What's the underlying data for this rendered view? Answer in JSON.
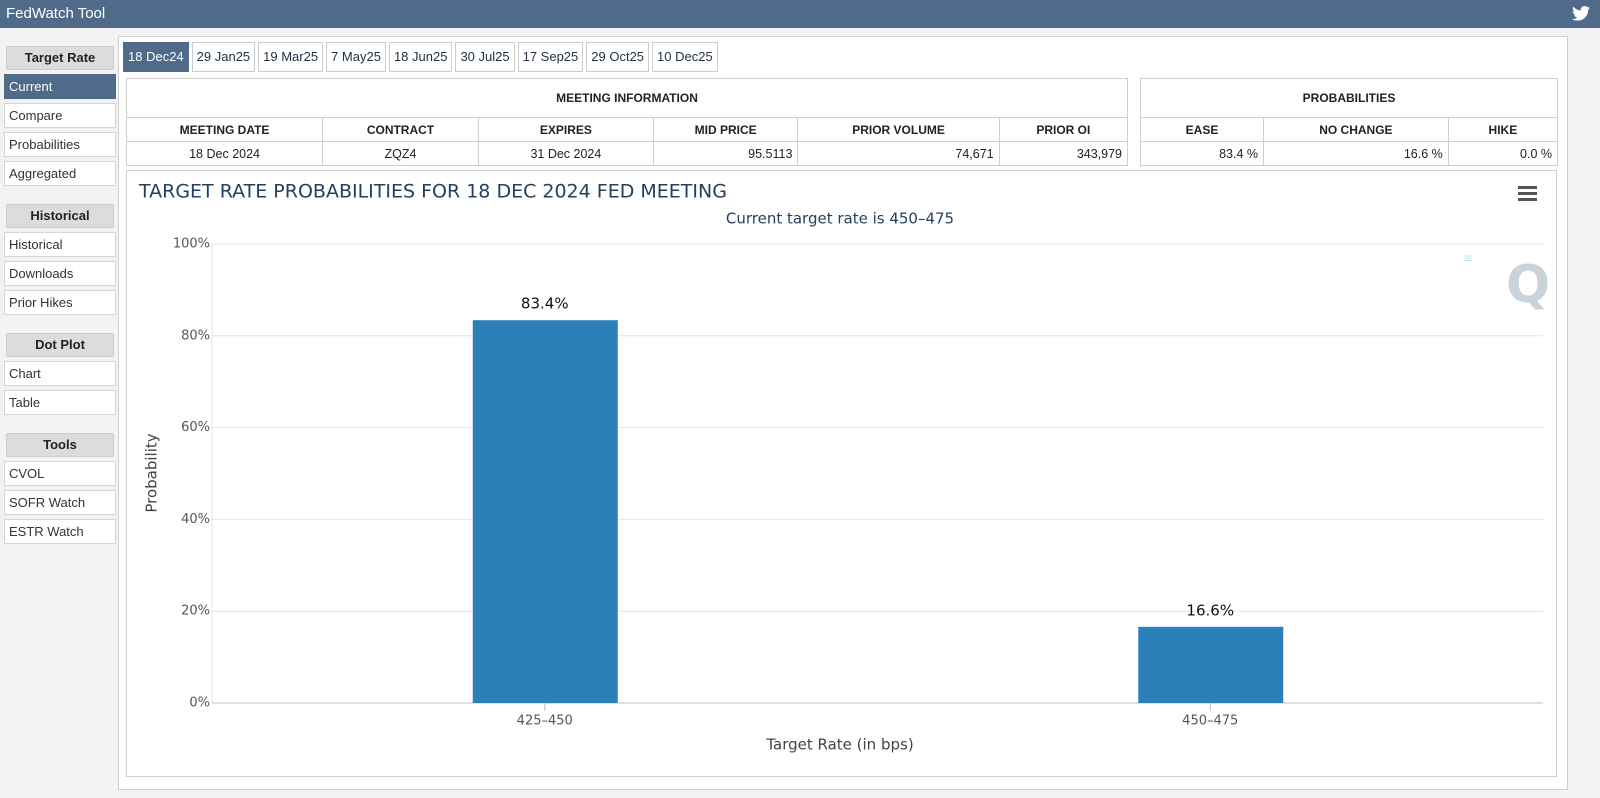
{
  "header": {
    "title": "FedWatch Tool"
  },
  "sidebar": {
    "sections": [
      {
        "title": "Target Rate",
        "items": [
          "Current",
          "Compare",
          "Probabilities",
          "Aggregated"
        ]
      },
      {
        "title": "Historical",
        "items": [
          "Historical",
          "Downloads",
          "Prior Hikes"
        ]
      },
      {
        "title": "Dot Plot",
        "items": [
          "Chart",
          "Table"
        ]
      },
      {
        "title": "Tools",
        "items": [
          "CVOL",
          "SOFR Watch",
          "ESTR Watch"
        ]
      }
    ]
  },
  "tabs": [
    "18 Dec24",
    "29 Jan25",
    "19 Mar25",
    "7 May25",
    "18 Jun25",
    "30 Jul25",
    "17 Sep25",
    "29 Oct25",
    "10 Dec25"
  ],
  "meeting_info": {
    "title": "MEETING INFORMATION",
    "columns": [
      "MEETING DATE",
      "CONTRACT",
      "EXPIRES",
      "MID PRICE",
      "PRIOR VOLUME",
      "PRIOR OI"
    ],
    "row": [
      "18 Dec 2024",
      "ZQZ4",
      "31 Dec 2024",
      "95.5113",
      "74,671",
      "343,979"
    ]
  },
  "probabilities": {
    "title": "PROBABILITIES",
    "columns": [
      "EASE",
      "NO CHANGE",
      "HIKE"
    ],
    "row": [
      "83.4 %",
      "16.6 %",
      "0.0 %"
    ]
  },
  "chart_data": {
    "type": "bar",
    "title": "TARGET RATE PROBABILITIES FOR 18 DEC 2024 FED MEETING",
    "subtitle": "Current target rate is 450–475",
    "x_label": "Target Rate (in bps)",
    "y_label": "Probability",
    "categories": [
      "425–450",
      "450–475"
    ],
    "values": [
      83.4,
      16.6
    ],
    "value_labels": [
      "83.4%",
      "16.6%"
    ],
    "color": "#2b80b9",
    "ylim": [
      0,
      100
    ],
    "yticks": [
      {
        "value": 0,
        "label": "0%"
      },
      {
        "value": 20,
        "label": "20%"
      },
      {
        "value": 40,
        "label": "40%"
      },
      {
        "value": 60,
        "label": "60%"
      },
      {
        "value": 80,
        "label": "80%"
      },
      {
        "value": 100,
        "label": "100%"
      }
    ],
    "grid": true
  }
}
